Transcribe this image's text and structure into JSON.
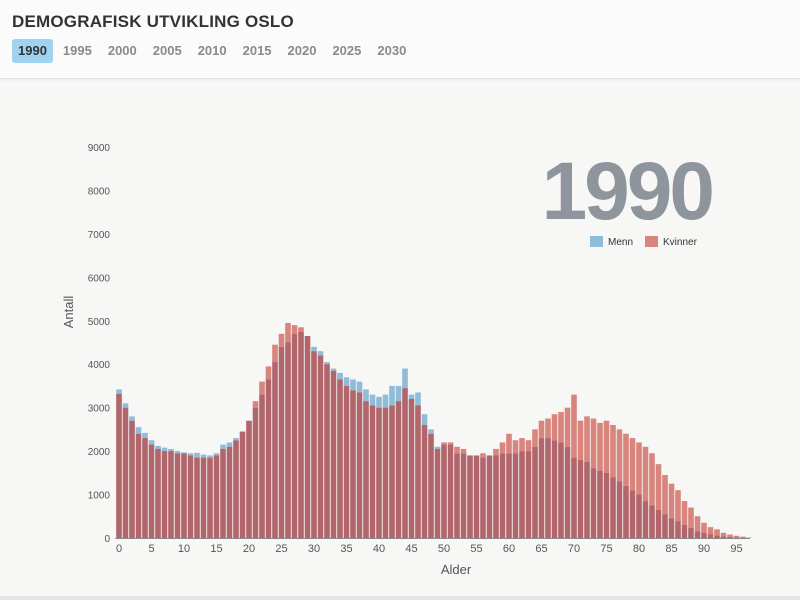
{
  "header": {
    "title": "DEMOGRAFISK UTVIKLING OSLO",
    "years": [
      "1990",
      "1995",
      "2000",
      "2005",
      "2010",
      "2015",
      "2020",
      "2025",
      "2030"
    ],
    "active_year": "1990"
  },
  "colors": {
    "menn": "#8fbcd8",
    "kvinner": "#d9847c",
    "overlap": "#b0666a"
  },
  "chart_data": {
    "type": "bar",
    "title": "",
    "big_label": "1990",
    "xlabel": "Alder",
    "ylabel": "Antall",
    "ylim": [
      0,
      9000
    ],
    "yticks": [
      0,
      1000,
      2000,
      3000,
      4000,
      5000,
      6000,
      7000,
      8000,
      9000
    ],
    "xticks": [
      0,
      5,
      10,
      15,
      20,
      25,
      30,
      35,
      40,
      45,
      50,
      55,
      60,
      65,
      70,
      75,
      80,
      85,
      90,
      95
    ],
    "x": [
      0,
      1,
      2,
      3,
      4,
      5,
      6,
      7,
      8,
      9,
      10,
      11,
      12,
      13,
      14,
      15,
      16,
      17,
      18,
      19,
      20,
      21,
      22,
      23,
      24,
      25,
      26,
      27,
      28,
      29,
      30,
      31,
      32,
      33,
      34,
      35,
      36,
      37,
      38,
      39,
      40,
      41,
      42,
      43,
      44,
      45,
      46,
      47,
      48,
      49,
      50,
      51,
      52,
      53,
      54,
      55,
      56,
      57,
      58,
      59,
      60,
      61,
      62,
      63,
      64,
      65,
      66,
      67,
      68,
      69,
      70,
      71,
      72,
      73,
      74,
      75,
      76,
      77,
      78,
      79,
      80,
      81,
      82,
      83,
      84,
      85,
      86,
      87,
      88,
      89,
      90,
      91,
      92,
      93,
      94,
      95,
      96,
      97
    ],
    "legend_position": "top-right",
    "grid": false,
    "series": [
      {
        "name": "Menn",
        "values": [
          3420,
          3100,
          2800,
          2550,
          2420,
          2250,
          2120,
          2080,
          2050,
          2000,
          1970,
          1950,
          1960,
          1920,
          1900,
          1950,
          2150,
          2200,
          2300,
          2450,
          2700,
          3000,
          3300,
          3650,
          4050,
          4400,
          4500,
          4700,
          4750,
          4650,
          4400,
          4300,
          4050,
          3900,
          3800,
          3700,
          3650,
          3600,
          3420,
          3300,
          3250,
          3300,
          3500,
          3500,
          3900,
          3300,
          3350,
          2850,
          2500,
          2100,
          2150,
          2150,
          1950,
          1950,
          1900,
          1900,
          1850,
          1900,
          1900,
          1950,
          1950,
          1950,
          2000,
          2000,
          2100,
          2300,
          2300,
          2250,
          2200,
          2100,
          1850,
          1800,
          1750,
          1600,
          1550,
          1500,
          1400,
          1300,
          1200,
          1100,
          1000,
          850,
          750,
          650,
          550,
          450,
          380,
          300,
          230,
          150,
          120,
          90,
          60,
          40,
          25,
          15,
          10,
          5
        ]
      },
      {
        "name": "Kvinner",
        "values": [
          3320,
          3000,
          2700,
          2400,
          2300,
          2150,
          2050,
          2000,
          2000,
          1950,
          1950,
          1900,
          1850,
          1850,
          1850,
          1900,
          2050,
          2100,
          2250,
          2450,
          2700,
          3150,
          3600,
          3950,
          4450,
          4700,
          4950,
          4900,
          4850,
          4650,
          4300,
          4200,
          4000,
          3850,
          3650,
          3500,
          3400,
          3350,
          3150,
          3050,
          3000,
          3000,
          3050,
          3150,
          3450,
          3200,
          3050,
          2600,
          2400,
          2050,
          2200,
          2200,
          2100,
          2050,
          1900,
          1900,
          1950,
          1900,
          2050,
          2200,
          2400,
          2250,
          2300,
          2250,
          2500,
          2700,
          2750,
          2850,
          2900,
          3000,
          3300,
          2700,
          2800,
          2750,
          2650,
          2700,
          2600,
          2500,
          2400,
          2300,
          2200,
          2100,
          1950,
          1700,
          1450,
          1250,
          1100,
          850,
          700,
          500,
          350,
          250,
          200,
          120,
          80,
          50,
          30,
          10
        ]
      }
    ]
  }
}
